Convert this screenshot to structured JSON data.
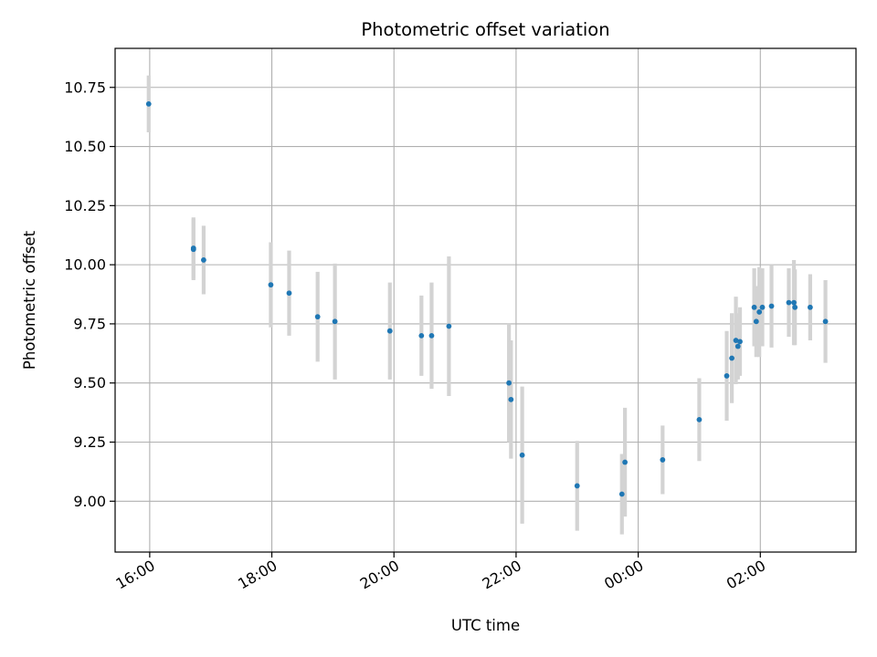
{
  "chart_data": {
    "type": "scatter",
    "title": "Photometric offset variation",
    "xlabel": "UTC time",
    "ylabel": "Photometric offset",
    "x_unit": "UTC time",
    "xlim": [
      "15:26",
      "03:34"
    ],
    "ylim": [
      8.785,
      10.915
    ],
    "x_ticks": [
      "16:00",
      "18:00",
      "20:00",
      "22:00",
      "00:00",
      "02:00"
    ],
    "y_ticks": [
      "9.00",
      "9.25",
      "9.50",
      "9.75",
      "10.00",
      "10.25",
      "10.50",
      "10.75"
    ],
    "grid": true,
    "point_color": "#1f77b4",
    "errorbar_color": "#d3d3d3",
    "series": [
      {
        "points": [
          {
            "time": "15:59",
            "y": 10.68,
            "err": 0.12
          },
          {
            "time": "16:43",
            "y": 10.07,
            "err": 0.13
          },
          {
            "time": "16:43",
            "y": 10.065,
            "err": 0.13
          },
          {
            "time": "16:53",
            "y": 10.02,
            "err": 0.145
          },
          {
            "time": "17:59",
            "y": 9.915,
            "err": 0.18
          },
          {
            "time": "18:17",
            "y": 9.88,
            "err": 0.18
          },
          {
            "time": "18:45",
            "y": 9.78,
            "err": 0.19
          },
          {
            "time": "19:02",
            "y": 9.76,
            "err": 0.245
          },
          {
            "time": "19:56",
            "y": 9.72,
            "err": 0.205
          },
          {
            "time": "20:27",
            "y": 9.7,
            "err": 0.17
          },
          {
            "time": "20:37",
            "y": 9.7,
            "err": 0.225
          },
          {
            "time": "20:54",
            "y": 9.74,
            "err": 0.295
          },
          {
            "time": "21:53",
            "y": 9.5,
            "err": 0.25
          },
          {
            "time": "21:55",
            "y": 9.43,
            "err": 0.25
          },
          {
            "time": "22:06",
            "y": 9.195,
            "err": 0.29
          },
          {
            "time": "23:00",
            "y": 9.065,
            "err": 0.19
          },
          {
            "time": "23:44",
            "y": 9.03,
            "err": 0.17
          },
          {
            "time": "23:47",
            "y": 9.165,
            "err": 0.23
          },
          {
            "time": "00:24",
            "y": 9.175,
            "err": 0.145
          },
          {
            "time": "01:00",
            "y": 9.345,
            "err": 0.175
          },
          {
            "time": "01:27",
            "y": 9.53,
            "err": 0.19
          },
          {
            "time": "01:32",
            "y": 9.605,
            "err": 0.19
          },
          {
            "time": "01:36",
            "y": 9.68,
            "err": 0.185
          },
          {
            "time": "01:38",
            "y": 9.655,
            "err": 0.14
          },
          {
            "time": "01:40",
            "y": 9.675,
            "err": 0.145
          },
          {
            "time": "01:54",
            "y": 9.82,
            "err": 0.165
          },
          {
            "time": "01:56",
            "y": 9.76,
            "err": 0.15
          },
          {
            "time": "01:59",
            "y": 9.8,
            "err": 0.19
          },
          {
            "time": "02:02",
            "y": 9.82,
            "err": 0.165
          },
          {
            "time": "02:11",
            "y": 9.825,
            "err": 0.175
          },
          {
            "time": "02:28",
            "y": 9.84,
            "err": 0.145
          },
          {
            "time": "02:33",
            "y": 9.84,
            "err": 0.18
          },
          {
            "time": "02:34",
            "y": 9.82,
            "err": 0.16
          },
          {
            "time": "02:49",
            "y": 9.82,
            "err": 0.14
          },
          {
            "time": "03:04",
            "y": 9.76,
            "err": 0.175
          }
        ]
      }
    ]
  }
}
